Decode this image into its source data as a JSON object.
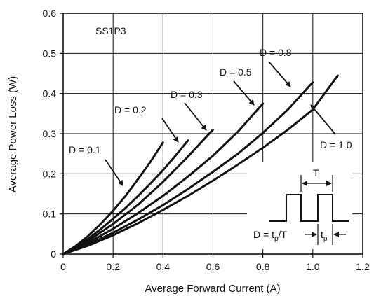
{
  "chart_data": {
    "type": "line",
    "title": "",
    "device_label": "SS1P3",
    "xlabel": "Average Forward Current (A)",
    "ylabel": "Average Power Loss (W)",
    "xlim": [
      0,
      1.2
    ],
    "ylim": [
      0,
      0.6
    ],
    "x_ticks": [
      "0",
      "0.2",
      "0.4",
      "0.6",
      "0.8",
      "1.0",
      "1.2"
    ],
    "y_ticks": [
      "0",
      "0.1",
      "0.2",
      "0.3",
      "0.4",
      "0.5",
      "0.6"
    ],
    "grid": true,
    "line_color": "#111111",
    "series": [
      {
        "name": "D = 0.1",
        "x": [
          0,
          0.05,
          0.1,
          0.15,
          0.2,
          0.25,
          0.3,
          0.35,
          0.4
        ],
        "y": [
          0,
          0.02,
          0.045,
          0.075,
          0.108,
          0.145,
          0.187,
          0.23,
          0.278
        ]
      },
      {
        "name": "D = 0.2",
        "x": [
          0,
          0.05,
          0.1,
          0.15,
          0.2,
          0.25,
          0.3,
          0.35,
          0.4,
          0.45,
          0.5
        ],
        "y": [
          0,
          0.017,
          0.038,
          0.062,
          0.088,
          0.115,
          0.145,
          0.176,
          0.209,
          0.245,
          0.283
        ]
      },
      {
        "name": "D = 0.3",
        "x": [
          0,
          0.1,
          0.2,
          0.3,
          0.4,
          0.5,
          0.6
        ],
        "y": [
          0,
          0.033,
          0.075,
          0.123,
          0.18,
          0.243,
          0.31
        ]
      },
      {
        "name": "D = 0.5",
        "x": [
          0,
          0.1,
          0.2,
          0.3,
          0.4,
          0.5,
          0.6,
          0.7,
          0.8
        ],
        "y": [
          0,
          0.028,
          0.063,
          0.102,
          0.145,
          0.193,
          0.245,
          0.305,
          0.375
        ]
      },
      {
        "name": "D = 0.8",
        "x": [
          0,
          0.1,
          0.2,
          0.3,
          0.4,
          0.5,
          0.6,
          0.7,
          0.8,
          0.9,
          1.0
        ],
        "y": [
          0,
          0.024,
          0.053,
          0.086,
          0.122,
          0.162,
          0.205,
          0.25,
          0.302,
          0.36,
          0.428
        ]
      },
      {
        "name": "D = 1.0",
        "x": [
          0,
          0.1,
          0.2,
          0.3,
          0.4,
          0.5,
          0.6,
          0.7,
          0.8,
          0.9,
          1.0,
          1.1
        ],
        "y": [
          0,
          0.021,
          0.047,
          0.077,
          0.11,
          0.145,
          0.183,
          0.223,
          0.265,
          0.31,
          0.36,
          0.445
        ]
      }
    ],
    "inset": {
      "period_label": "T",
      "duty_formula": "D = t",
      "duty_formula_sub": "p",
      "duty_formula_tail": "/T",
      "pulse_label": "t",
      "pulse_label_sub": "p"
    }
  }
}
